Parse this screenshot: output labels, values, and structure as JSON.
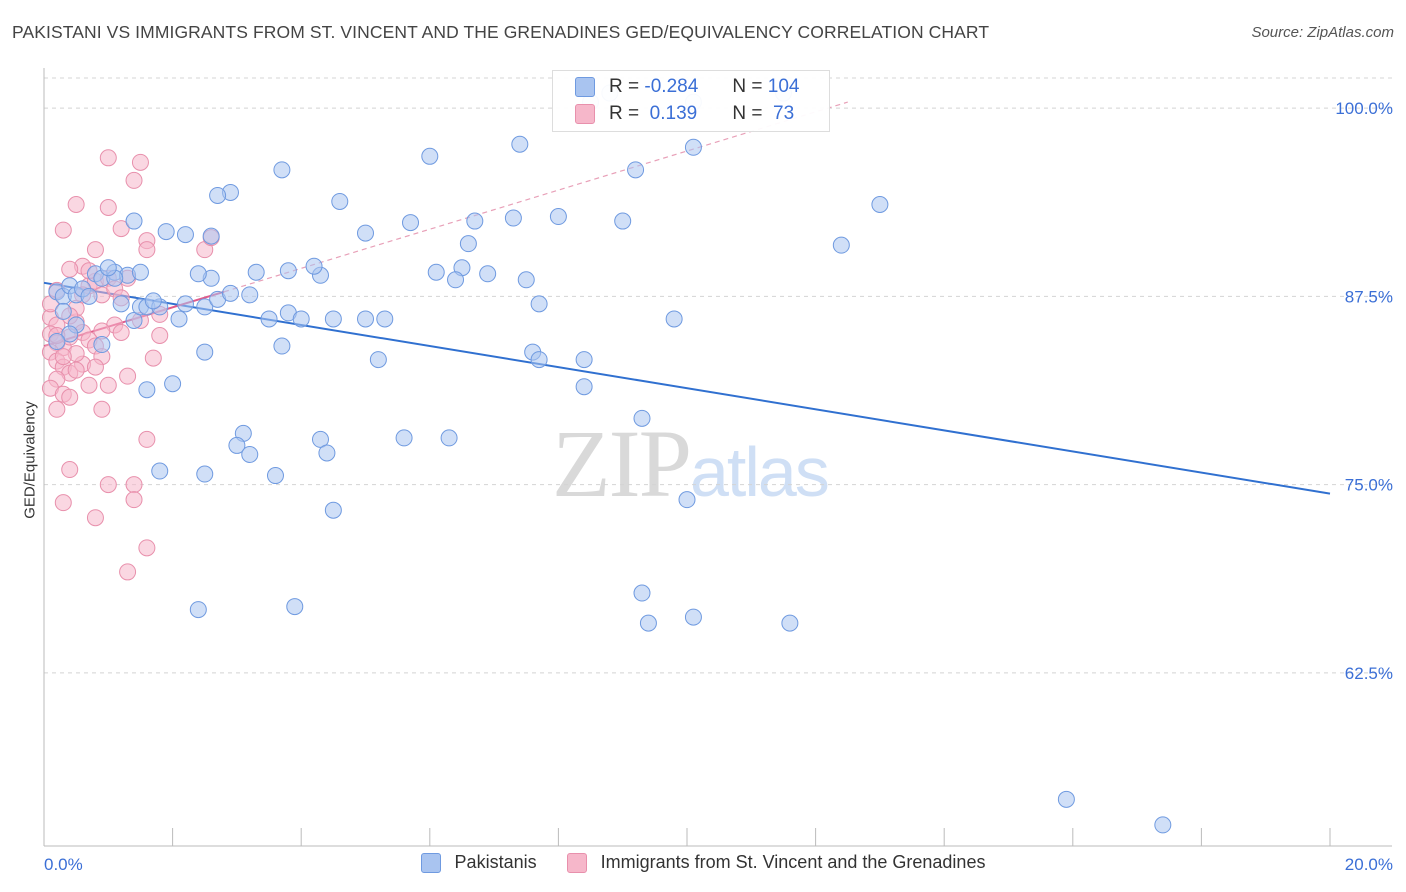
{
  "title": "PAKISTANI VS IMMIGRANTS FROM ST. VINCENT AND THE GRENADINES GED/EQUIVALENCY CORRELATION CHART",
  "source": "Source: ZipAtlas.com",
  "watermark": {
    "zip": "ZIP",
    "atlas": "atlas"
  },
  "legend": {
    "rows": [
      {
        "r_label": "R =",
        "r_value": "-0.284",
        "n_label": "N =",
        "n_value": "104",
        "color": "#a9c4f0"
      },
      {
        "r_label": "R =",
        "r_value": " 0.139",
        "n_label": "N =",
        "n_value": " 73",
        "color": "#f6b7ca"
      }
    ]
  },
  "bottom_legend": [
    {
      "label": "Pakistanis",
      "color": "#a9c4f0"
    },
    {
      "label": "Immigrants from St. Vincent and the Grenadines",
      "color": "#f6b7ca"
    }
  ],
  "chart_data": {
    "type": "scatter",
    "title": "PAKISTANI VS IMMIGRANTS FROM ST. VINCENT AND THE GRENADINES GED/EQUIVALENCY CORRELATION CHART",
    "xlabel": "",
    "ylabel": "GED/Equivalency",
    "xlim": [
      0,
      20
    ],
    "ylim": [
      51,
      102
    ],
    "x_tick_labels": [
      "0.0%",
      "20.0%"
    ],
    "y_ticks": [
      100,
      87.5,
      75,
      62.5
    ],
    "y_tick_labels": [
      "100.0%",
      "87.5%",
      "75.0%",
      "62.5%"
    ],
    "grid": "horizontal dashed",
    "legend_position": "top-center",
    "series": [
      {
        "name": "Pakistanis",
        "color": "#6f9ae0",
        "fill": "#a9c4f0",
        "trend": {
          "x": [
            0,
            20
          ],
          "y": [
            88.4,
            74.4
          ]
        },
        "points": [
          [
            0.2,
            87.8
          ],
          [
            0.3,
            87.5
          ],
          [
            0.4,
            88.2
          ],
          [
            0.5,
            87.6
          ],
          [
            0.6,
            88.0
          ],
          [
            0.7,
            87.5
          ],
          [
            0.8,
            89.0
          ],
          [
            0.9,
            88.7
          ],
          [
            1.1,
            89.1
          ],
          [
            1.3,
            88.9
          ],
          [
            0.3,
            86.5
          ],
          [
            0.5,
            85.6
          ],
          [
            0.4,
            85.0
          ],
          [
            0.2,
            84.5
          ],
          [
            0.9,
            84.3
          ],
          [
            1.4,
            85.9
          ],
          [
            1.2,
            87.0
          ],
          [
            1.5,
            86.8
          ],
          [
            1.6,
            86.8
          ],
          [
            1.8,
            86.8
          ],
          [
            2.1,
            86.0
          ],
          [
            2.2,
            87.0
          ],
          [
            2.5,
            86.8
          ],
          [
            2.7,
            87.3
          ],
          [
            2.9,
            87.7
          ],
          [
            3.2,
            87.6
          ],
          [
            3.5,
            86.0
          ],
          [
            3.8,
            86.4
          ],
          [
            4.0,
            86.0
          ],
          [
            4.3,
            88.9
          ],
          [
            2.6,
            88.7
          ],
          [
            1.7,
            87.2
          ],
          [
            1.1,
            88.7
          ],
          [
            1.5,
            89.1
          ],
          [
            2.4,
            89.0
          ],
          [
            3.3,
            89.1
          ],
          [
            3.8,
            89.2
          ],
          [
            4.2,
            89.5
          ],
          [
            4.5,
            86.0
          ],
          [
            5.0,
            86.0
          ],
          [
            5.3,
            86.0
          ],
          [
            5.2,
            83.3
          ],
          [
            1.4,
            92.5
          ],
          [
            1.9,
            91.8
          ],
          [
            2.2,
            91.6
          ],
          [
            2.6,
            91.5
          ],
          [
            2.9,
            94.4
          ],
          [
            2.7,
            94.2
          ],
          [
            3.7,
            95.9
          ],
          [
            4.6,
            93.8
          ],
          [
            5.0,
            91.7
          ],
          [
            5.7,
            92.4
          ],
          [
            6.1,
            89.1
          ],
          [
            6.5,
            89.4
          ],
          [
            6.4,
            88.6
          ],
          [
            6.9,
            89.0
          ],
          [
            7.3,
            92.7
          ],
          [
            7.5,
            88.6
          ],
          [
            7.7,
            87.0
          ],
          [
            6.0,
            96.8
          ],
          [
            6.7,
            92.5
          ],
          [
            7.4,
            97.6
          ],
          [
            8.0,
            92.8
          ],
          [
            6.6,
            91.0
          ],
          [
            7.6,
            83.8
          ],
          [
            7.7,
            83.3
          ],
          [
            8.4,
            83.3
          ],
          [
            8.4,
            81.5
          ],
          [
            1.6,
            81.3
          ],
          [
            2.0,
            81.7
          ],
          [
            2.5,
            83.8
          ],
          [
            3.7,
            84.2
          ],
          [
            3.1,
            78.4
          ],
          [
            3.0,
            77.6
          ],
          [
            3.2,
            77.0
          ],
          [
            4.3,
            78.0
          ],
          [
            4.4,
            77.1
          ],
          [
            5.6,
            78.1
          ],
          [
            6.3,
            78.1
          ],
          [
            1.8,
            75.9
          ],
          [
            2.5,
            75.7
          ],
          [
            3.6,
            75.6
          ],
          [
            4.5,
            73.3
          ],
          [
            9.0,
            92.5
          ],
          [
            9.2,
            95.9
          ],
          [
            9.8,
            86.0
          ],
          [
            10.1,
            97.4
          ],
          [
            9.3,
            79.4
          ],
          [
            12.4,
            90.9
          ],
          [
            13.0,
            93.6
          ],
          [
            8.8,
            101.0
          ],
          [
            8.5,
            100.4
          ],
          [
            10.1,
            100.4
          ],
          [
            11.5,
            101.0
          ],
          [
            10.0,
            74.0
          ],
          [
            9.3,
            67.8
          ],
          [
            10.1,
            66.2
          ],
          [
            9.4,
            65.8
          ],
          [
            11.6,
            65.8
          ],
          [
            2.4,
            66.7
          ],
          [
            3.9,
            66.9
          ],
          [
            15.9,
            54.1
          ],
          [
            17.4,
            52.4
          ],
          [
            1.0,
            89.4
          ]
        ]
      },
      {
        "name": "Immigrants from St. Vincent and the Grenadines",
        "color": "#e890ac",
        "fill": "#f6b7ca",
        "trend": {
          "x": [
            0,
            2.8
          ],
          "y": [
            84.2,
            87.8
          ]
        },
        "trend_ext": {
          "x": [
            2.8,
            12.5
          ],
          "y": [
            87.8,
            100.4
          ]
        },
        "points": [
          [
            0.1,
            86.1
          ],
          [
            0.2,
            85.6
          ],
          [
            0.1,
            85.0
          ],
          [
            0.2,
            84.4
          ],
          [
            0.3,
            84.1
          ],
          [
            0.1,
            83.8
          ],
          [
            0.2,
            83.2
          ],
          [
            0.3,
            82.8
          ],
          [
            0.4,
            82.4
          ],
          [
            0.2,
            82.0
          ],
          [
            0.1,
            81.4
          ],
          [
            0.3,
            81.0
          ],
          [
            0.4,
            80.8
          ],
          [
            0.2,
            80.0
          ],
          [
            0.5,
            85.8
          ],
          [
            0.6,
            85.1
          ],
          [
            0.7,
            84.6
          ],
          [
            0.8,
            84.2
          ],
          [
            0.9,
            83.5
          ],
          [
            0.6,
            83.0
          ],
          [
            0.8,
            82.8
          ],
          [
            0.5,
            83.7
          ],
          [
            0.7,
            88.2
          ],
          [
            0.8,
            88.5
          ],
          [
            0.9,
            87.6
          ],
          [
            1.0,
            88.7
          ],
          [
            1.1,
            88.0
          ],
          [
            1.2,
            87.4
          ],
          [
            0.6,
            89.5
          ],
          [
            0.7,
            89.2
          ],
          [
            0.8,
            90.6
          ],
          [
            0.3,
            91.9
          ],
          [
            1.0,
            93.4
          ],
          [
            1.2,
            92.0
          ],
          [
            1.6,
            91.2
          ],
          [
            1.6,
            90.6
          ],
          [
            2.5,
            90.6
          ],
          [
            2.6,
            91.4
          ],
          [
            1.0,
            96.7
          ],
          [
            1.5,
            96.4
          ],
          [
            1.4,
            95.2
          ],
          [
            0.5,
            93.6
          ],
          [
            1.1,
            85.6
          ],
          [
            1.2,
            85.1
          ],
          [
            1.8,
            86.3
          ],
          [
            1.7,
            83.4
          ],
          [
            1.3,
            82.2
          ],
          [
            1.0,
            81.6
          ],
          [
            0.9,
            80.0
          ],
          [
            1.6,
            78.0
          ],
          [
            0.4,
            76.0
          ],
          [
            1.0,
            75.0
          ],
          [
            1.4,
            75.0
          ],
          [
            1.4,
            74.0
          ],
          [
            0.3,
            73.8
          ],
          [
            0.8,
            72.8
          ],
          [
            1.6,
            70.8
          ],
          [
            1.3,
            69.2
          ],
          [
            0.4,
            84.8
          ],
          [
            0.5,
            86.7
          ],
          [
            0.2,
            87.9
          ],
          [
            0.6,
            87.6
          ],
          [
            0.4,
            89.3
          ],
          [
            0.9,
            85.2
          ],
          [
            1.5,
            85.9
          ],
          [
            1.8,
            84.9
          ],
          [
            0.2,
            84.9
          ],
          [
            0.3,
            83.5
          ],
          [
            0.5,
            82.6
          ],
          [
            0.7,
            81.6
          ],
          [
            0.1,
            87.0
          ],
          [
            0.4,
            86.2
          ],
          [
            1.3,
            88.7
          ]
        ]
      }
    ]
  }
}
